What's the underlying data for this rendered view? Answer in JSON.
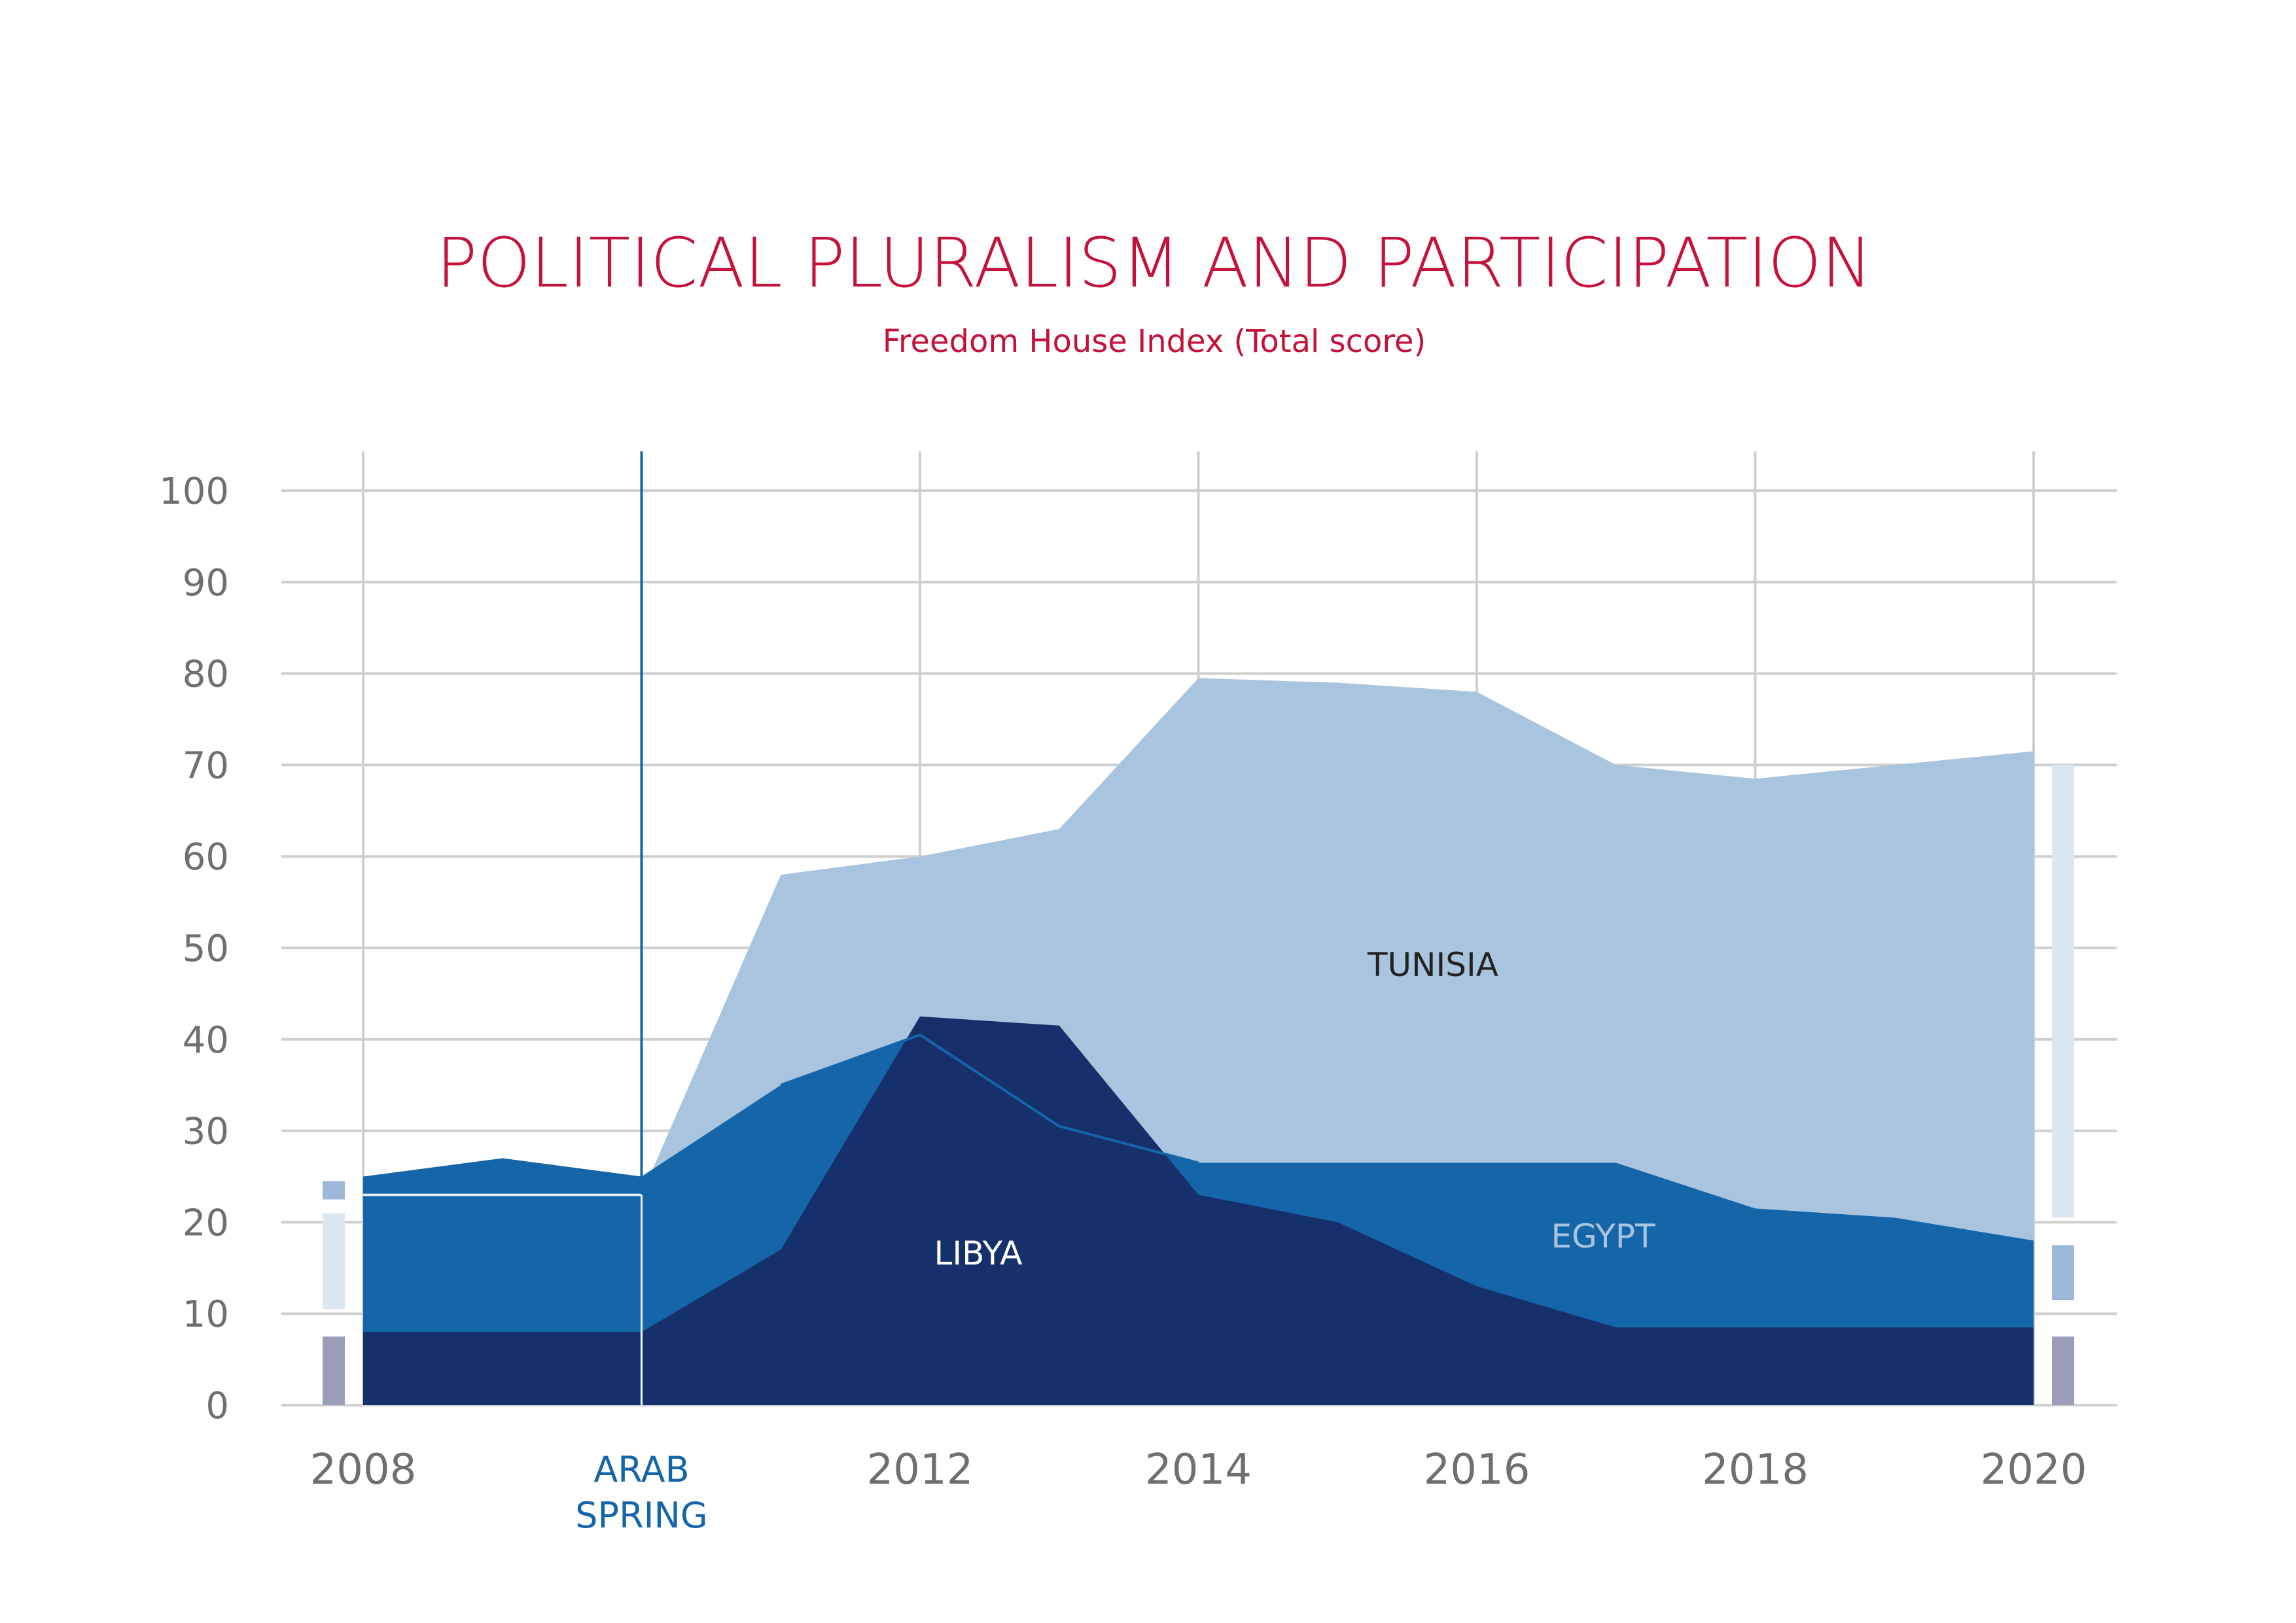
{
  "colors": {
    "title": "#c4123a",
    "tunisia": "#a9c4de",
    "egypt": "#1565a9",
    "libya": "#15306a",
    "grid": "#cfcfcf",
    "tick_text": "#6f6f6f",
    "event_line": "#1565a9",
    "range_light": "#dce6f1",
    "range_mid": "#9db8d9",
    "range_dark": "#9a9db7"
  },
  "chart_data": {
    "type": "area",
    "title": "POLITICAL PLURALISM AND PARTICIPATION",
    "subtitle": "Freedom House Index (Total score)",
    "x": [
      2008,
      2009,
      2010,
      2011,
      2012,
      2013,
      2014,
      2015,
      2016,
      2017,
      2018,
      2019,
      2020
    ],
    "xlim": [
      2008,
      2020
    ],
    "ylim": [
      0,
      100
    ],
    "y_ticks": [
      "0",
      "10",
      "20",
      "30",
      "40",
      "50",
      "60",
      "70",
      "80",
      "90",
      "100"
    ],
    "x_ticks": [
      "2008",
      "2012",
      "2014",
      "2016",
      "2018",
      "2020"
    ],
    "grid": true,
    "overlap": "layered, not stacked",
    "series": [
      {
        "name": "TUNISIA",
        "color": "#a9c4de",
        "values": [
          23,
          23,
          23,
          58,
          60,
          63,
          79.5,
          79,
          78,
          70,
          68.5,
          70,
          71.5
        ]
      },
      {
        "name": "EGYPT",
        "color": "#1565a9",
        "values": [
          25,
          27,
          25,
          35,
          40.5,
          30.5,
          26.5,
          26.5,
          26.5,
          26.5,
          21.5,
          20.5,
          18
        ]
      },
      {
        "name": "LIBYA",
        "color": "#15306a",
        "values": [
          8,
          8,
          8,
          17,
          42.5,
          41.5,
          23,
          20,
          13,
          8.5,
          8.5,
          8.5,
          8.5
        ]
      }
    ],
    "annotations": [
      {
        "type": "vline",
        "x": 2010,
        "label_lines": [
          "ARAB",
          "SPRING"
        ]
      }
    ],
    "range_markers": [
      {
        "x": 2008,
        "segments": [
          {
            "from": 0,
            "to": 7.5,
            "tone": "dark"
          },
          {
            "from": 10.5,
            "to": 21,
            "tone": "light"
          },
          {
            "from": 22.5,
            "to": 24.5,
            "tone": "mid"
          }
        ]
      },
      {
        "x": 2020,
        "segments": [
          {
            "from": 0,
            "to": 7.5,
            "tone": "dark"
          },
          {
            "from": 11.5,
            "to": 17.5,
            "tone": "mid"
          },
          {
            "from": 20.5,
            "to": 70,
            "tone": "light"
          }
        ]
      }
    ]
  }
}
